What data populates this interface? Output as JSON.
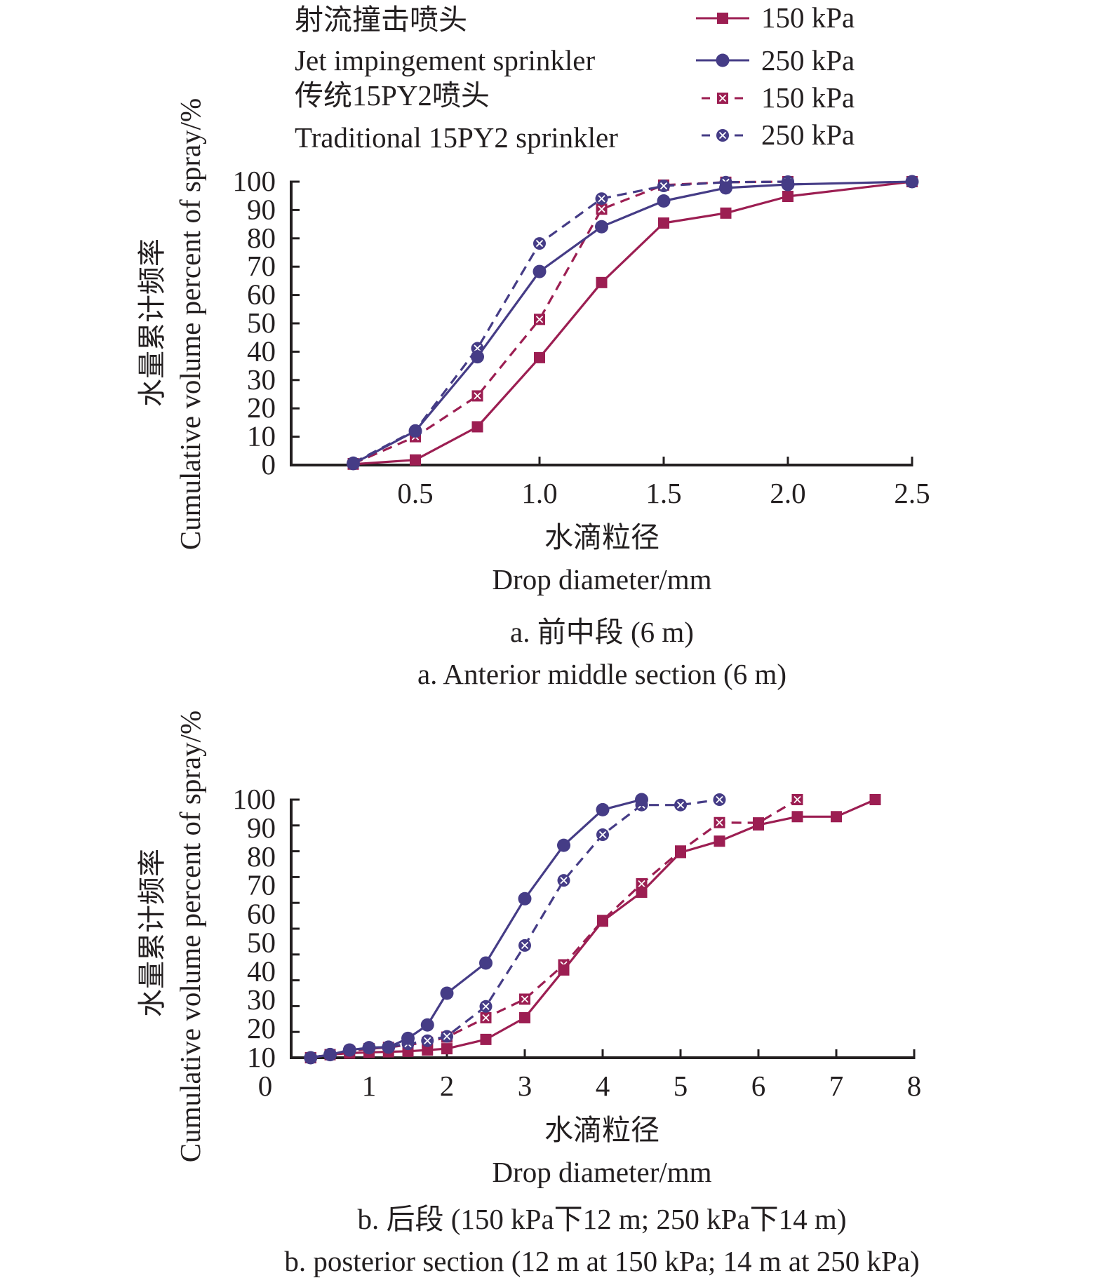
{
  "legend": {
    "groups": [
      {
        "zh": "射流撞击喷头",
        "en": "Jet impingement sprinkler"
      },
      {
        "zh": "传统15PY2喷头",
        "en": "Traditional 15PY2 sprinkler"
      }
    ],
    "entries": [
      {
        "label": "150 kPa",
        "series": "jet_150"
      },
      {
        "label": "250 kPa",
        "series": "jet_250"
      },
      {
        "label": "150 kPa",
        "series": "trad_150"
      },
      {
        "label": "250 kPa",
        "series": "trad_250"
      }
    ]
  },
  "colors": {
    "kPa150": "#9c1e52",
    "kPa250": "#453c86",
    "axis": "#231f20"
  },
  "series_styles": {
    "jet_150": {
      "color": "#9c1e52",
      "line": "solid",
      "marker": "square-filled"
    },
    "jet_250": {
      "color": "#453c86",
      "line": "solid",
      "marker": "circle-filled"
    },
    "trad_150": {
      "color": "#9c1e52",
      "line": "dashed",
      "marker": "square-x"
    },
    "trad_250": {
      "color": "#453c86",
      "line": "dashed",
      "marker": "circle-x"
    }
  },
  "chart_data": [
    {
      "id": "a",
      "type": "line",
      "caption_zh": "a. 前中段 (6 m)",
      "caption_en": "a. Anterior middle section (6 m)",
      "xlabel_zh": "水滴粒径",
      "xlabel_en": "Drop diameter/mm",
      "ylabel_zh": "水量累计频率",
      "ylabel_en": "Cumulative volume percent of spray/%",
      "xlim": [
        0,
        2.5
      ],
      "ylim": [
        0,
        100
      ],
      "xticks": [
        "0.5",
        "1.0",
        "1.5",
        "2.0",
        "2.5"
      ],
      "xtick_values": [
        0.5,
        1.0,
        1.5,
        2.0,
        2.5
      ],
      "yticks": [
        "100",
        "90",
        "80",
        "70",
        "60",
        "50",
        "40",
        "30",
        "20",
        "10",
        "0"
      ],
      "ytick_values": [
        100,
        90,
        80,
        70,
        60,
        50,
        40,
        30,
        20,
        10,
        0
      ],
      "grid": false,
      "series": [
        {
          "key": "jet_150",
          "name": "射流撞击喷头 150 kPa",
          "x": [
            0.25,
            0.5,
            0.75,
            1.0,
            1.25,
            1.5,
            1.75,
            2.0,
            2.5
          ],
          "y": [
            0.3,
            1.8,
            13.5,
            37.9,
            64.4,
            85.4,
            88.9,
            94.8,
            100
          ]
        },
        {
          "key": "jet_250",
          "name": "射流撞击喷头 250 kPa",
          "x": [
            0.25,
            0.5,
            0.75,
            1.0,
            1.25,
            1.5,
            1.75,
            2.0,
            2.5
          ],
          "y": [
            0.5,
            12.0,
            38.2,
            68.3,
            84.1,
            93.2,
            97.8,
            99.0,
            100
          ]
        },
        {
          "key": "trad_150",
          "name": "传统15PY2喷头 150 kPa",
          "x": [
            0.25,
            0.5,
            0.75,
            1.0,
            1.25,
            1.5,
            1.75,
            2.0
          ],
          "y": [
            0.5,
            10.0,
            24.4,
            51.4,
            90.3,
            98.8,
            99.8,
            100
          ]
        },
        {
          "key": "trad_250",
          "name": "传统15PY2喷头 250 kPa",
          "x": [
            0.25,
            0.5,
            0.75,
            1.0,
            1.25,
            1.5,
            1.75,
            2.0
          ],
          "y": [
            0.8,
            12.2,
            41.2,
            78.2,
            94.0,
            98.5,
            99.8,
            100
          ]
        }
      ]
    },
    {
      "id": "b",
      "type": "line",
      "caption_zh": "b. 后段 (150 kPa下12 m; 250 kPa下14 m)",
      "caption_en": "b. posterior section (12 m at 150 kPa; 14 m at 250 kPa)",
      "xlabel_zh": "水滴粒径",
      "xlabel_en": "Drop diameter/mm",
      "ylabel_zh": "水量累计频率",
      "ylabel_en": "Cumulative volume percent of spray/%",
      "xlim": [
        0,
        8
      ],
      "ylim": [
        0,
        100
      ],
      "xticks": [
        "0",
        "1",
        "2",
        "3",
        "4",
        "5",
        "6",
        "7",
        "8"
      ],
      "xtick_values": [
        0,
        1,
        2,
        3,
        4,
        5,
        6,
        7,
        8
      ],
      "yticks": [
        "100",
        "90",
        "80",
        "70",
        "60",
        "50",
        "40",
        "30",
        "20",
        "10"
      ],
      "ytick_marks": [
        100,
        90,
        80,
        70,
        60,
        50,
        40,
        30,
        20,
        10,
        0
      ],
      "grid": false,
      "series": [
        {
          "key": "jet_150",
          "name": "射流撞击喷头 150 kPa",
          "x": [
            0.25,
            0.5,
            0.75,
            1.0,
            1.25,
            1.5,
            1.75,
            2.0,
            2.5,
            3.0,
            3.5,
            4.0,
            4.5,
            5.0,
            5.5,
            6.0,
            6.5,
            7.0,
            7.5
          ],
          "y": [
            0,
            1.2,
            1.8,
            2.1,
            2.3,
            2.5,
            3.0,
            3.5,
            7.1,
            15.5,
            34.0,
            52.9,
            64.1,
            79.5,
            83.9,
            90.2,
            93.4,
            93.4,
            100
          ]
        },
        {
          "key": "jet_250",
          "name": "射流撞击喷头 250 kPa",
          "x": [
            0.25,
            0.5,
            0.75,
            1.0,
            1.25,
            1.5,
            1.75,
            2.0,
            2.5,
            3.0,
            3.5,
            4.0,
            4.5
          ],
          "y": [
            0,
            1.2,
            3.0,
            3.9,
            4.1,
            7.5,
            12.7,
            25.0,
            36.7,
            61.6,
            82.3,
            96.1,
            100
          ]
        },
        {
          "key": "trad_150",
          "name": "传统15PY2喷头 150 kPa",
          "x": [
            0.25,
            0.5,
            0.75,
            1.0,
            1.25,
            1.5,
            1.75,
            2.0,
            2.5,
            3.0,
            3.5,
            4.0,
            4.5,
            5.0,
            5.5,
            6.0,
            6.5
          ],
          "y": [
            0,
            1.2,
            2.5,
            3.5,
            4.0,
            5.0,
            6.0,
            8.0,
            15.5,
            22.7,
            36.0,
            53.2,
            67.4,
            80.1,
            91.1,
            91.0,
            100
          ]
        },
        {
          "key": "trad_250",
          "name": "传统15PY2喷头 250 kPa",
          "x": [
            0.25,
            0.5,
            0.75,
            1.0,
            1.25,
            1.5,
            1.75,
            2.0,
            2.5,
            3.0,
            3.5,
            4.0,
            4.5,
            5.0,
            5.5
          ],
          "y": [
            0,
            1.4,
            2.9,
            3.8,
            4.2,
            5.4,
            6.6,
            8.3,
            19.9,
            43.5,
            68.7,
            86.4,
            97.9,
            97.9,
            100
          ]
        }
      ]
    }
  ]
}
